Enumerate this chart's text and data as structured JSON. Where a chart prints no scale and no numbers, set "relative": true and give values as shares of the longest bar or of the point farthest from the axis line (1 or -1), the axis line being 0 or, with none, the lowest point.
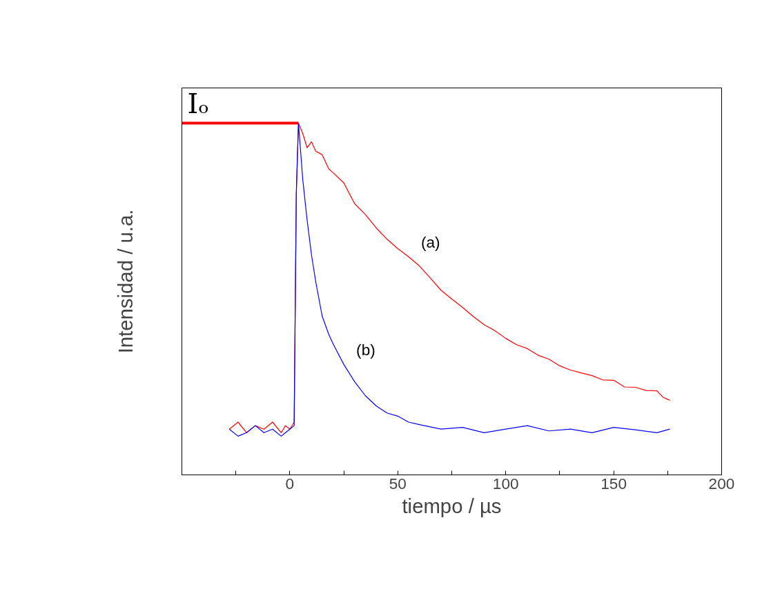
{
  "chart_data": {
    "type": "line",
    "relative": true,
    "xlabel": "tiempo / µs",
    "ylabel": "Intensidad / u.a.",
    "xlim": [
      -50,
      200
    ],
    "xticks": [
      {
        "value": -50,
        "label": null
      },
      {
        "value": -25,
        "label": null
      },
      0,
      {
        "value": 25,
        "label": null
      },
      50,
      {
        "value": 75,
        "label": null
      },
      100,
      {
        "value": 125,
        "label": null
      },
      150,
      {
        "value": 175,
        "label": null
      },
      200
    ],
    "grid": false,
    "legend": false,
    "marker": "none",
    "line_style": "solid",
    "series": [
      {
        "name": "(a)",
        "color": "#ff0000",
        "x": [
          -28,
          -24,
          -20,
          -16,
          -12,
          -8,
          -4,
          -2,
          0,
          2,
          3,
          4,
          6,
          8,
          10,
          12,
          15,
          18,
          20,
          25,
          30,
          35,
          40,
          45,
          50,
          55,
          60,
          65,
          70,
          75,
          80,
          85,
          90,
          95,
          100,
          105,
          110,
          115,
          120,
          125,
          130,
          135,
          140,
          145,
          150,
          155,
          160,
          165,
          170,
          173,
          176
        ],
        "values": [
          0.13,
          0.15,
          0.12,
          0.14,
          0.13,
          0.15,
          0.12,
          0.14,
          0.13,
          0.15,
          0.8,
          1.0,
          0.97,
          0.93,
          0.947,
          0.92,
          0.91,
          0.87,
          0.859,
          0.83,
          0.771,
          0.74,
          0.702,
          0.67,
          0.643,
          0.62,
          0.594,
          0.56,
          0.525,
          0.5,
          0.476,
          0.45,
          0.427,
          0.41,
          0.388,
          0.37,
          0.359,
          0.34,
          0.329,
          0.31,
          0.298,
          0.29,
          0.282,
          0.27,
          0.269,
          0.25,
          0.249,
          0.24,
          0.239,
          0.22,
          0.212
        ]
      },
      {
        "name": "(b)",
        "color": "#0000ff",
        "x": [
          -28,
          -24,
          -20,
          -16,
          -12,
          -8,
          -4,
          -2,
          0,
          2,
          3,
          4,
          6,
          8,
          10,
          12,
          15,
          18,
          20,
          25,
          30,
          35,
          40,
          45,
          50,
          55,
          60,
          70,
          80,
          90,
          100,
          110,
          120,
          130,
          140,
          150,
          160,
          170,
          176
        ],
        "values": [
          0.13,
          0.11,
          0.12,
          0.14,
          0.12,
          0.13,
          0.11,
          0.12,
          0.13,
          0.14,
          0.8,
          1.0,
          0.839,
          0.725,
          0.627,
          0.549,
          0.451,
          0.4,
          0.373,
          0.314,
          0.265,
          0.225,
          0.196,
          0.176,
          0.167,
          0.15,
          0.143,
          0.13,
          0.135,
          0.12,
          0.13,
          0.14,
          0.125,
          0.13,
          0.12,
          0.135,
          0.128,
          0.12,
          0.13
        ]
      }
    ],
    "ref_lines": [
      {
        "axis": "y",
        "value": 1.0,
        "label": "Iₒ",
        "color": "#ff0000"
      }
    ]
  }
}
